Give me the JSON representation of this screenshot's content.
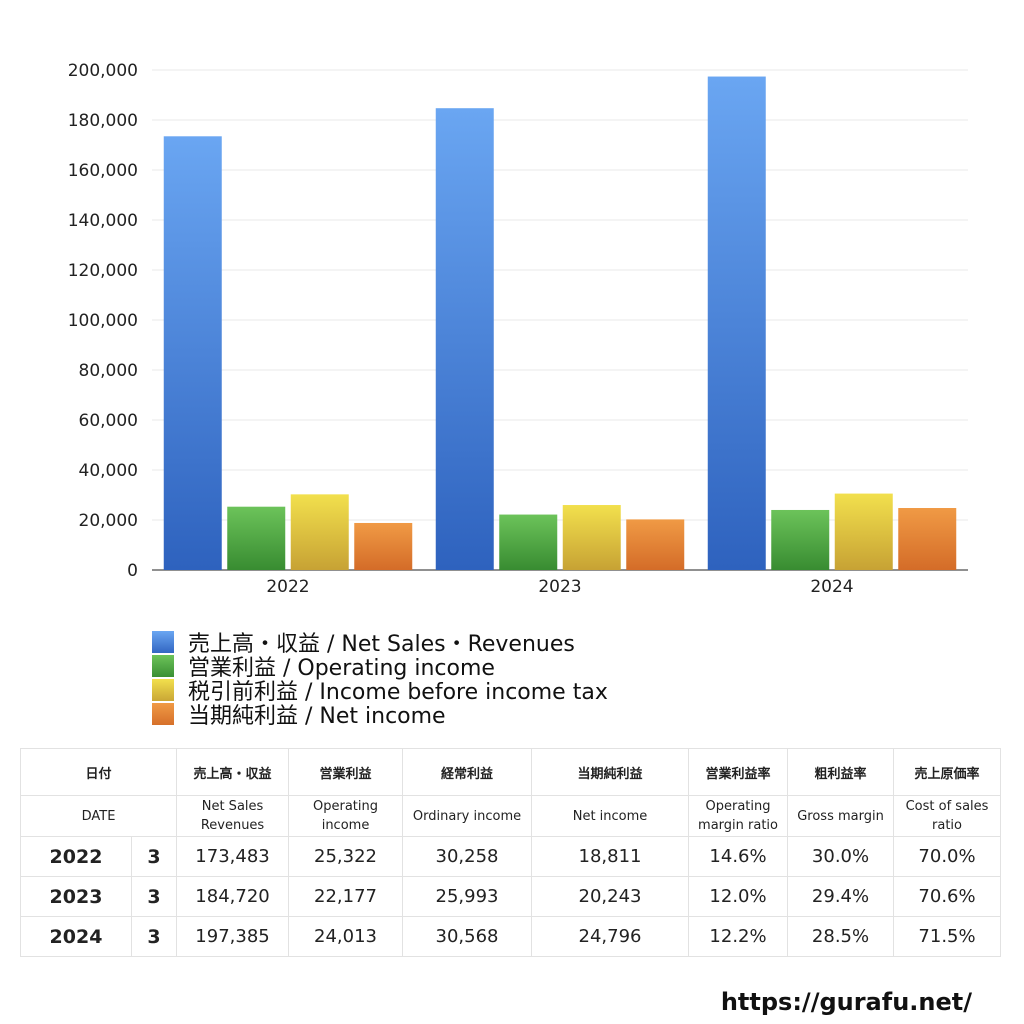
{
  "chart_data": {
    "type": "bar",
    "categories": [
      "2022",
      "2023",
      "2024"
    ],
    "series": [
      {
        "name": "売上高・収益 / Net Sales・Revenues",
        "values": [
          173483,
          184720,
          197385
        ],
        "color": "#3d7ad8"
      },
      {
        "name": "営業利益 / Operating income",
        "values": [
          25322,
          22177,
          24013
        ],
        "color": "#4aa63f"
      },
      {
        "name": "税引前利益 / Income before income tax",
        "values": [
          30258,
          25993,
          30568
        ],
        "color": "#e0c33a"
      },
      {
        "name": "当期純利益 / Net income",
        "values": [
          18811,
          20243,
          24796
        ],
        "color": "#e0802e"
      }
    ],
    "ylim": [
      0,
      200000
    ],
    "yticks": [
      "0",
      "20,000",
      "40,000",
      "60,000",
      "80,000",
      "100,000",
      "120,000",
      "140,000",
      "160,000",
      "180,000",
      "200,000"
    ],
    "grid": true,
    "legend_position": "bottom"
  },
  "table": {
    "headers_jp": [
      "日付",
      "売上高・収益",
      "営業利益",
      "経常利益",
      "当期純利益",
      "営業利益率",
      "粗利益率",
      "売上原価率"
    ],
    "headers_en": [
      "DATE",
      [
        "Net Sales",
        "Revenues"
      ],
      [
        "Operating",
        "income"
      ],
      "Ordinary income",
      "Net income",
      [
        "Operating",
        "margin ratio"
      ],
      "Gross margin",
      [
        "Cost of sales",
        "ratio"
      ]
    ],
    "rows": [
      {
        "year": "2022",
        "month": "3",
        "sales": "173,483",
        "op": "25,322",
        "ord": "30,258",
        "net": "18,811",
        "opm": "14.6%",
        "gm": "30.0%",
        "cos": "70.0%"
      },
      {
        "year": "2023",
        "month": "3",
        "sales": "184,720",
        "op": "22,177",
        "ord": "25,993",
        "net": "20,243",
        "opm": "12.0%",
        "gm": "29.4%",
        "cos": "70.6%"
      },
      {
        "year": "2024",
        "month": "3",
        "sales": "197,385",
        "op": "24,013",
        "ord": "30,568",
        "net": "24,796",
        "opm": "12.2%",
        "gm": "28.5%",
        "cos": "71.5%"
      }
    ]
  },
  "footer": {
    "url": "https://gurafu.net/"
  }
}
